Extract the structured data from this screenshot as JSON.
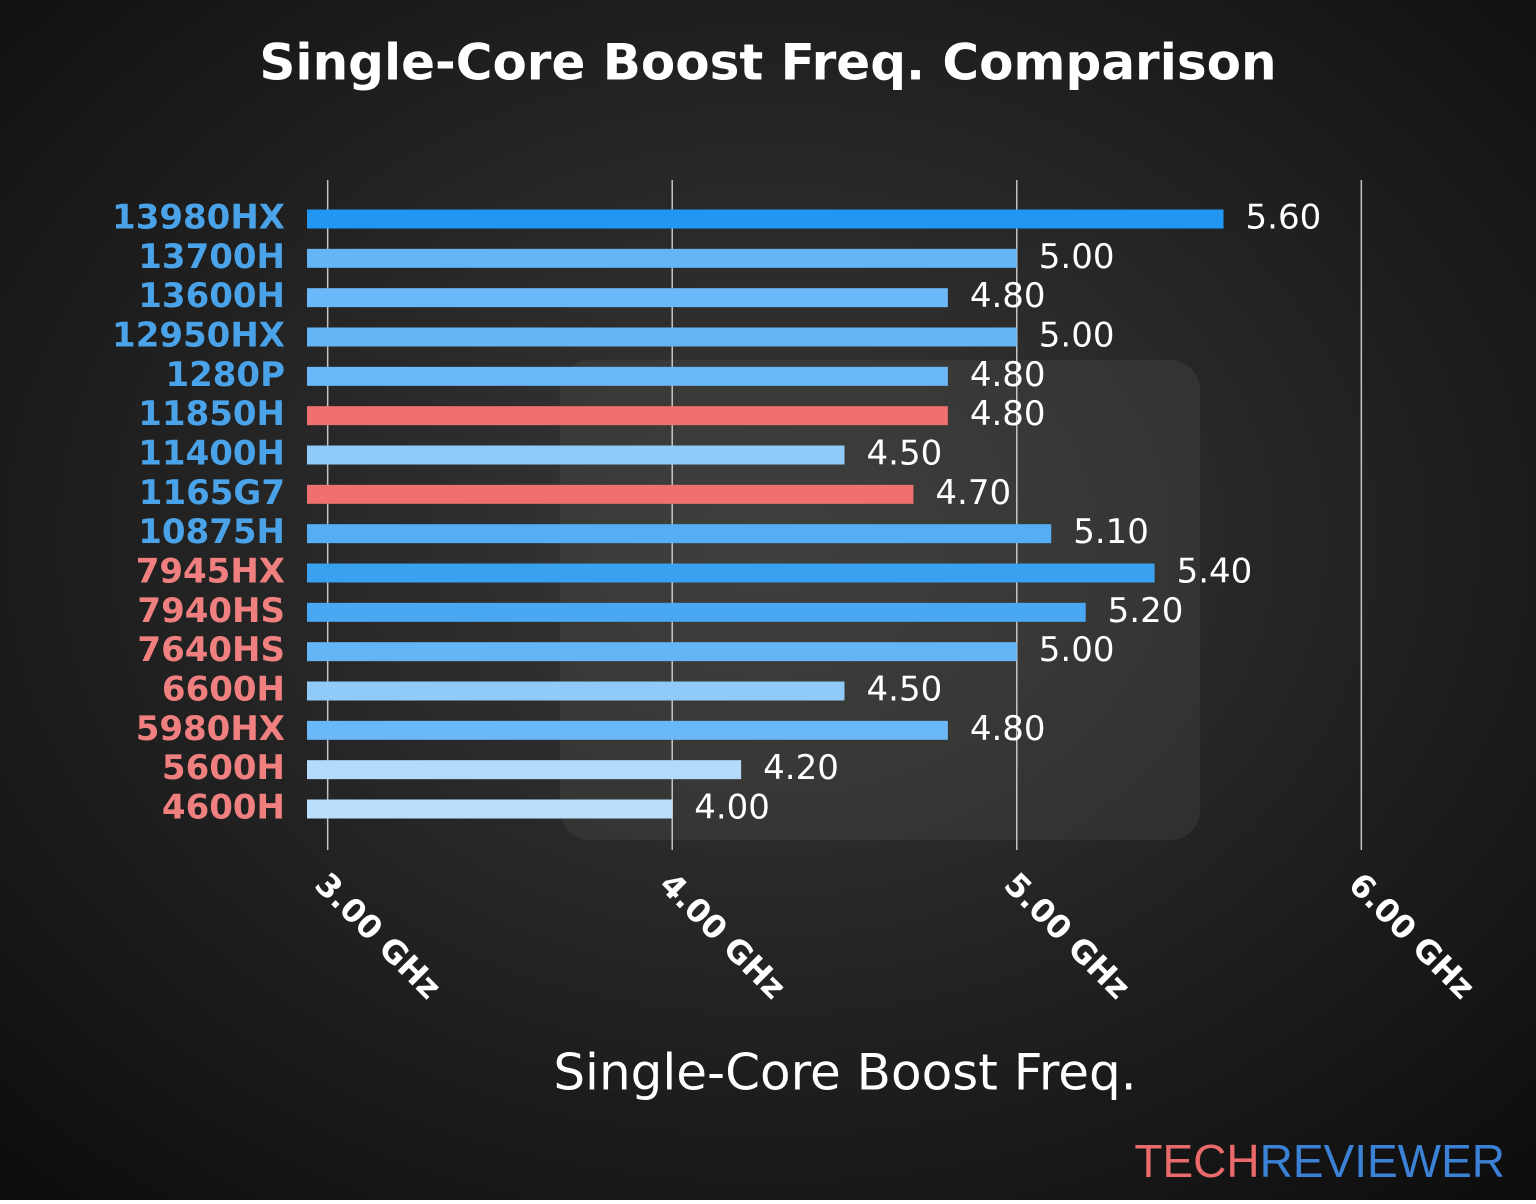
{
  "chart_data": {
    "type": "hbar",
    "title": "Single-Core Boost Freq. Comparison",
    "x_label": "Single-Core Boost Freq.",
    "categories": [
      "13980HX",
      "13700H",
      "13600H",
      "12950HX",
      "1280P",
      "11850H",
      "11400H",
      "1165G7",
      "10875H",
      "7945HX",
      "7940HS",
      "7640HS",
      "6600H",
      "5980HX",
      "5600H",
      "4600H"
    ],
    "label_colors": [
      "#4aa3e8",
      "#4aa3e8",
      "#4aa3e8",
      "#4aa3e8",
      "#4aa3e8",
      "#4aa3e8",
      "#4aa3e8",
      "#4aa3e8",
      "#4aa3e8",
      "#f08080",
      "#f08080",
      "#f08080",
      "#f08080",
      "#f08080",
      "#f08080",
      "#f08080"
    ],
    "values": [
      5.6,
      5.0,
      4.8,
      5.0,
      4.8,
      4.8,
      4.5,
      4.7,
      5.1,
      5.4,
      5.2,
      5.0,
      4.5,
      4.8,
      4.2,
      4.0
    ],
    "value_labels": [
      "5.60",
      "5.00",
      "4.80",
      "5.00",
      "4.80",
      "4.80",
      "4.50",
      "4.70",
      "5.10",
      "5.40",
      "5.20",
      "5.00",
      "4.50",
      "4.80",
      "4.20",
      "4.00"
    ],
    "colors": [
      "#2196f3",
      "#64b5f6",
      "#6ab8f7",
      "#64b5f6",
      "#6ab8f7",
      "#f07070",
      "#90caf9",
      "#f07070",
      "#55adf4",
      "#3aa0f0",
      "#4aa8f3",
      "#64b5f6",
      "#90caf9",
      "#6ab8f7",
      "#b3d9fb",
      "#bbdefb"
    ],
    "xlim": [
      2.94,
      6.06
    ],
    "xticks": [
      {
        "value": 3,
        "label": "3.00 GHz"
      },
      {
        "value": 4,
        "label": "4.00 GHz"
      },
      {
        "value": 5,
        "label": "5.00 GHz"
      },
      {
        "value": 6,
        "label": "6.00 GHz"
      }
    ],
    "grid": true,
    "watermark": {
      "left": "TECH",
      "right": "REVIEWER"
    }
  }
}
